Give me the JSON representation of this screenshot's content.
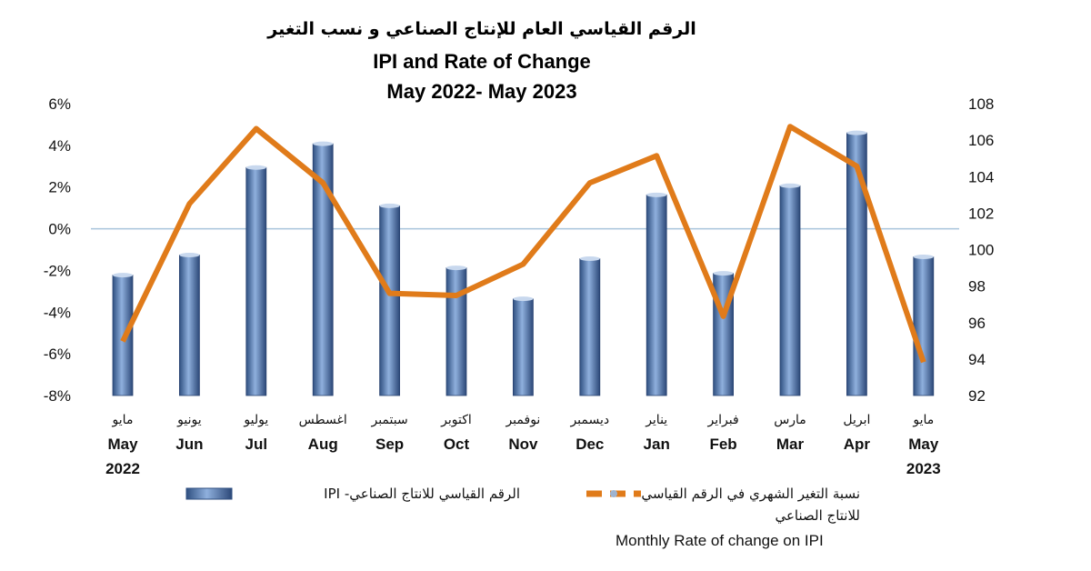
{
  "chart_data": {
    "type": "bar+line",
    "title_ar": "الرقم القياسي العام للإنتاج الصناعي و نسب التغير",
    "title": "IPI and Rate of Change",
    "subtitle": "May 2022- May 2023",
    "categories": [
      {
        "ar": "مايو",
        "en": "May",
        "year": "2022"
      },
      {
        "ar": "يونيو",
        "en": "Jun",
        "year": ""
      },
      {
        "ar": "يوليو",
        "en": "Jul",
        "year": ""
      },
      {
        "ar": "اغسطس",
        "en": "Aug",
        "year": ""
      },
      {
        "ar": "سبتمبر",
        "en": "Sep",
        "year": ""
      },
      {
        "ar": "اكتوبر",
        "en": "Oct",
        "year": ""
      },
      {
        "ar": "نوفمبر",
        "en": "Nov",
        "year": ""
      },
      {
        "ar": "ديسمبر",
        "en": "Dec",
        "year": ""
      },
      {
        "ar": "يناير",
        "en": "Jan",
        "year": ""
      },
      {
        "ar": "فبراير",
        "en": "Feb",
        "year": ""
      },
      {
        "ar": "مارس",
        "en": "Mar",
        "year": ""
      },
      {
        "ar": "ابريل",
        "en": "Apr",
        "year": ""
      },
      {
        "ar": "مايو",
        "en": "May",
        "year": "2023"
      }
    ],
    "series": [
      {
        "name": "الرقم القياسي للانتاج الصناعي- IPI",
        "type": "bar",
        "axis": "right",
        "color": "#4a6fa5",
        "values": [
          98.6,
          99.7,
          104.5,
          105.8,
          102.4,
          99.0,
          97.3,
          99.5,
          103.0,
          98.7,
          103.5,
          106.4,
          99.6
        ]
      },
      {
        "name": "نسبة التغير الشهري في الرقم القياسي للانتاج الصناعي",
        "name_line2": "للانتاج الصناعي",
        "name_en": "Monthly Rate of change on IPI",
        "type": "line",
        "axis": "left",
        "color": "#e07b1a",
        "values": [
          -5.4,
          1.2,
          4.8,
          2.2,
          -3.1,
          -3.2,
          -1.7,
          2.2,
          3.5,
          -4.2,
          4.9,
          3.0,
          -6.4
        ]
      }
    ],
    "left_axis": {
      "min": -8,
      "max": 6,
      "step": 2,
      "ticks": [
        "-8%",
        "-6%",
        "-4%",
        "-2%",
        "0%",
        "2%",
        "4%",
        "6%"
      ]
    },
    "right_axis": {
      "min": 92,
      "max": 108,
      "step": 2,
      "ticks": [
        "92",
        "94",
        "96",
        "98",
        "100",
        "102",
        "104",
        "106",
        "108"
      ]
    },
    "legend_placement": "bottom"
  },
  "legend": {
    "ipi_label": "الرقم القياسي للانتاج الصناعي- IPI",
    "rate_label_line1": "نسبة التغير الشهري في الرقم القياسي",
    "rate_label_line2": "للانتاج الصناعي",
    "rate_label_en": "Monthly Rate of change on IPI"
  }
}
